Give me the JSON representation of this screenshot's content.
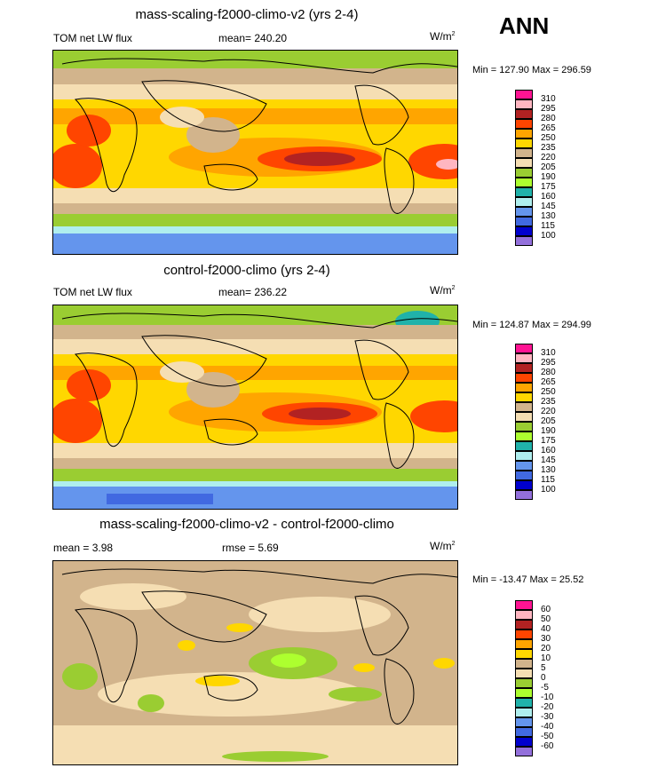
{
  "season": "ANN",
  "panels": [
    {
      "title": "mass-scaling-f2000-climo-v2 (yrs 2-4)",
      "left_label": "TOM net LW flux",
      "center_label": "mean= 240.20",
      "units": "W/m",
      "units_sup": "2",
      "minmax": "Min = 127.90 Max = 296.59",
      "colorbar_levels": [
        "310",
        "295",
        "280",
        "265",
        "250",
        "235",
        "220",
        "205",
        "190",
        "175",
        "160",
        "145",
        "130",
        "115",
        "100"
      ],
      "colorbar_colors": [
        "#ff1493",
        "#ffb6c1",
        "#b22222",
        "#ff4500",
        "#ffa500",
        "#ffd700",
        "#d2b48c",
        "#f5deb3",
        "#9acd32",
        "#adff2f",
        "#20b2aa",
        "#afeeee",
        "#6495ed",
        "#4169e1",
        "#0000cd",
        "#9370db"
      ]
    },
    {
      "title": "control-f2000-climo (yrs 2-4)",
      "left_label": "TOM net LW flux",
      "center_label": "mean= 236.22",
      "units": "W/m",
      "units_sup": "2",
      "minmax": "Min = 124.87 Max = 294.99",
      "colorbar_levels": [
        "310",
        "295",
        "280",
        "265",
        "250",
        "235",
        "220",
        "205",
        "190",
        "175",
        "160",
        "145",
        "130",
        "115",
        "100"
      ],
      "colorbar_colors": [
        "#ff1493",
        "#ffb6c1",
        "#b22222",
        "#ff4500",
        "#ffa500",
        "#ffd700",
        "#d2b48c",
        "#f5deb3",
        "#9acd32",
        "#adff2f",
        "#20b2aa",
        "#afeeee",
        "#6495ed",
        "#4169e1",
        "#0000cd",
        "#9370db"
      ]
    },
    {
      "title": "mass-scaling-f2000-climo-v2 - control-f2000-climo",
      "left_label": "mean =   3.98",
      "center_label": "rmse =   5.69",
      "units": "W/m",
      "units_sup": "2",
      "minmax": "Min = -13.47 Max =  25.52",
      "colorbar_levels": [
        "60",
        "50",
        "40",
        "30",
        "20",
        "10",
        "5",
        "0",
        "-5",
        "-10",
        "-20",
        "-30",
        "-40",
        "-50",
        "-60"
      ],
      "colorbar_colors": [
        "#ff1493",
        "#ffb6c1",
        "#b22222",
        "#ff4500",
        "#ffa500",
        "#ffd700",
        "#d2b48c",
        "#f5deb3",
        "#9acd32",
        "#adff2f",
        "#20b2aa",
        "#afeeee",
        "#6495ed",
        "#4169e1",
        "#0000cd",
        "#9370db"
      ]
    }
  ],
  "chart_data": [
    {
      "type": "heatmap",
      "title": "mass-scaling-f2000-climo-v2 (yrs 2-4)",
      "variable": "TOM net LW flux",
      "units": "W/m2",
      "mean": 240.2,
      "min": 127.9,
      "max": 296.59,
      "levels": [
        100,
        115,
        130,
        145,
        160,
        175,
        190,
        205,
        220,
        235,
        250,
        265,
        280,
        295,
        310
      ]
    },
    {
      "type": "heatmap",
      "title": "control-f2000-climo (yrs 2-4)",
      "variable": "TOM net LW flux",
      "units": "W/m2",
      "mean": 236.22,
      "min": 124.87,
      "max": 294.99,
      "levels": [
        100,
        115,
        130,
        145,
        160,
        175,
        190,
        205,
        220,
        235,
        250,
        265,
        280,
        295,
        310
      ]
    },
    {
      "type": "heatmap",
      "title": "mass-scaling-f2000-climo-v2 - control-f2000-climo",
      "units": "W/m2",
      "mean": 3.98,
      "rmse": 5.69,
      "min": -13.47,
      "max": 25.52,
      "levels": [
        -60,
        -50,
        -40,
        -30,
        -20,
        -10,
        -5,
        0,
        5,
        10,
        20,
        30,
        40,
        50,
        60
      ]
    }
  ]
}
